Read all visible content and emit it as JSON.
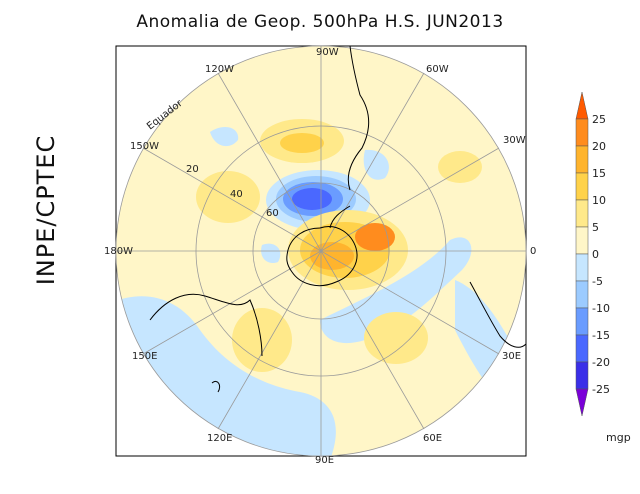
{
  "title": "Anomalia de Geop. 500hPa H.S. JUN2013",
  "side_label": "INPE/CPTEC",
  "map": {
    "projection": "polar-stereographic south hemisphere",
    "longitude_labels": [
      "90W",
      "60W",
      "30W",
      "0",
      "30E",
      "60E",
      "90E",
      "120E",
      "150E",
      "180W",
      "150W",
      "120W"
    ],
    "latitude_labels": [
      "20",
      "40",
      "60"
    ],
    "equator_label": "Equador"
  },
  "colorbar": {
    "unit": "mgp",
    "ticks": [
      "25",
      "20",
      "15",
      "10",
      "5",
      "0",
      "-5",
      "-10",
      "-15",
      "-20",
      "-25"
    ],
    "colors": [
      "#ff5a00",
      "#ff8c1e",
      "#ffb42d",
      "#ffd24a",
      "#ffe98a",
      "#fff6c8",
      "#c6e6ff",
      "#9ccbff",
      "#6a9cff",
      "#4a68ff",
      "#3a2fe8",
      "#7a00d8"
    ]
  }
}
